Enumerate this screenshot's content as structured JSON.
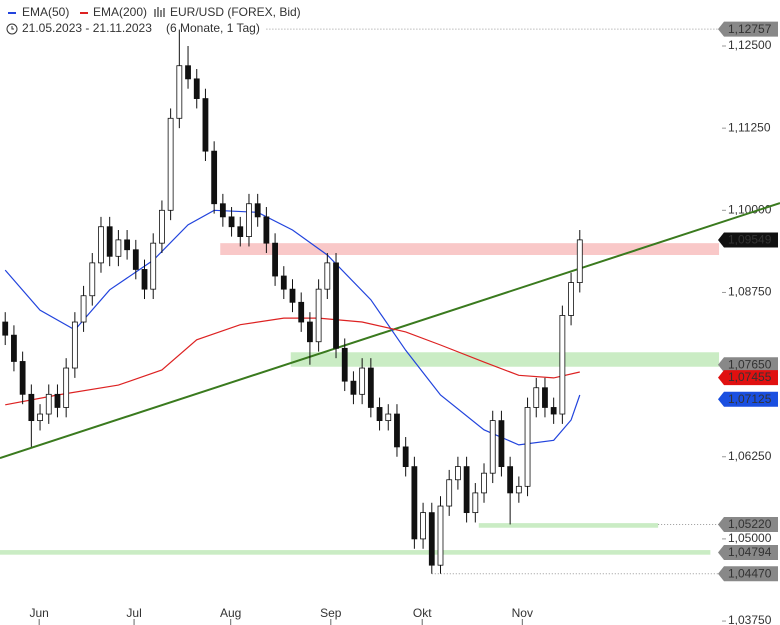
{
  "chart_data": {
    "type": "candlestick",
    "title": "EUR/USD (FOREX, Bid)",
    "date_range": "21.05.2023 - 21.11.2023",
    "period": "(6 Monate, 1 Tag)",
    "xlim": [
      -0.6,
      89
    ],
    "ylim": [
      1.0369,
      1.132
    ],
    "xticks": [
      {
        "value": 3.9,
        "label": "Jun"
      },
      {
        "value": 14.8,
        "label": "Jul"
      },
      {
        "value": 25.9,
        "label": "Aug"
      },
      {
        "value": 37.4,
        "label": "Sep"
      },
      {
        "value": 47.9,
        "label": "Okt"
      },
      {
        "value": 59.4,
        "label": "Nov"
      }
    ],
    "yticks": [
      {
        "value": 1.125,
        "label": "1,12500"
      },
      {
        "value": 1.1125,
        "label": "1,11250"
      },
      {
        "value": 1.1,
        "label": "1,10000"
      },
      {
        "value": 1.0875,
        "label": "1,08750"
      },
      {
        "value": 1.0625,
        "label": "1,06250"
      },
      {
        "value": 1.05,
        "label": "1,05000"
      },
      {
        "value": 1.0375,
        "label": "1,03750"
      }
    ],
    "open": [
      1.083,
      1.081,
      1.077,
      1.072,
      1.068,
      1.069,
      1.072,
      1.07,
      1.076,
      1.083,
      1.087,
      1.092,
      1.0975,
      1.093,
      1.0955,
      1.094,
      1.091,
      1.088,
      1.095,
      1.1,
      1.114,
      1.122,
      1.12,
      1.117,
      1.109,
      1.101,
      1.099,
      1.0975,
      1.096,
      1.101,
      1.099,
      1.095,
      1.09,
      1.088,
      1.086,
      1.083,
      1.08,
      1.088,
      1.092,
      1.079,
      1.074,
      1.072,
      1.076,
      1.07,
      1.068,
      1.069,
      1.064,
      1.061,
      1.05,
      1.054,
      1.046,
      1.055,
      1.059,
      1.061,
      1.054,
      1.057,
      1.06,
      1.068,
      1.061,
      1.057,
      1.058,
      1.07,
      1.073,
      1.07,
      1.069,
      1.084,
      1.089
    ],
    "high": [
      1.0845,
      1.0825,
      1.0785,
      1.0735,
      1.0705,
      1.0735,
      1.0735,
      1.0775,
      1.0845,
      1.0885,
      1.0935,
      1.099,
      1.099,
      1.097,
      1.097,
      1.0955,
      1.0925,
      1.0965,
      1.1015,
      1.1155,
      1.1275,
      1.125,
      1.1215,
      1.1185,
      1.1105,
      1.1025,
      1.1005,
      1.099,
      1.1025,
      1.1025,
      1.1005,
      1.0965,
      1.0915,
      1.0895,
      1.0875,
      1.0845,
      1.0895,
      1.0935,
      1.0935,
      1.0805,
      1.0755,
      1.0775,
      1.0775,
      1.0715,
      1.0705,
      1.0705,
      1.0655,
      1.0625,
      1.0555,
      1.0555,
      1.0565,
      1.0605,
      1.0625,
      1.0625,
      1.0585,
      1.0615,
      1.0695,
      1.0695,
      1.0625,
      1.0595,
      1.0715,
      1.0745,
      1.0745,
      1.0715,
      1.0855,
      1.0905,
      1.097
    ],
    "low": [
      1.0795,
      1.0755,
      1.0705,
      1.064,
      1.0665,
      1.0675,
      1.0685,
      1.0685,
      1.0745,
      1.0815,
      1.0855,
      1.0905,
      1.0915,
      1.0915,
      1.0925,
      1.0895,
      1.0865,
      1.0865,
      1.0935,
      1.0985,
      1.1125,
      1.1185,
      1.1155,
      1.1075,
      1.0995,
      1.0975,
      1.096,
      1.0945,
      1.0945,
      1.0975,
      1.0935,
      1.0885,
      1.0865,
      1.0845,
      1.0815,
      1.0765,
      1.0785,
      1.0865,
      1.0775,
      1.0725,
      1.0705,
      1.0705,
      1.0685,
      1.0665,
      1.0665,
      1.0625,
      1.0595,
      1.0485,
      1.0485,
      1.0447,
      1.0447,
      1.0535,
      1.0575,
      1.0525,
      1.0525,
      1.0555,
      1.0585,
      1.0595,
      1.0522,
      1.0555,
      1.0565,
      1.0685,
      1.0685,
      1.0675,
      1.0675,
      1.0825,
      1.0875
    ],
    "close": [
      1.081,
      1.077,
      1.072,
      1.068,
      1.069,
      1.072,
      1.07,
      1.076,
      1.083,
      1.087,
      1.092,
      1.0975,
      1.093,
      1.0955,
      1.094,
      1.091,
      1.088,
      1.095,
      1.1,
      1.114,
      1.122,
      1.12,
      1.117,
      1.109,
      1.101,
      1.099,
      1.0975,
      1.096,
      1.101,
      1.099,
      1.095,
      1.09,
      1.088,
      1.086,
      1.083,
      1.08,
      1.088,
      1.092,
      1.079,
      1.074,
      1.072,
      1.076,
      1.07,
      1.068,
      1.069,
      1.064,
      1.061,
      1.05,
      1.054,
      1.046,
      1.055,
      1.059,
      1.061,
      1.054,
      1.057,
      1.06,
      1.068,
      1.061,
      1.057,
      1.058,
      1.07,
      1.073,
      1.07,
      1.069,
      1.084,
      1.089,
      1.0955
    ],
    "series": [
      {
        "name": "EMA(50)",
        "color": "#2244dd",
        "x": [
          0,
          4,
          8,
          12,
          17,
          21,
          24,
          29,
          33,
          37,
          42,
          46,
          50,
          55,
          59,
          63,
          65,
          66
        ],
        "values": [
          1.0909,
          1.0848,
          1.0818,
          1.0879,
          1.0924,
          1.0978,
          1.1,
          1.0997,
          1.097,
          1.0932,
          1.0864,
          1.0787,
          1.0719,
          1.0666,
          1.0643,
          1.065,
          1.0681,
          1.0719
        ]
      },
      {
        "name": "EMA(200)",
        "color": "#dd2222",
        "x": [
          0,
          6,
          13,
          18,
          22,
          27,
          32,
          36,
          41,
          46,
          50,
          55,
          59,
          63,
          66
        ],
        "values": [
          1.0704,
          1.0719,
          1.0734,
          1.0757,
          1.0803,
          1.0826,
          1.0836,
          1.0836,
          1.083,
          1.0815,
          1.0795,
          1.0769,
          1.0749,
          1.0745,
          1.0754
        ]
      }
    ],
    "trendline": {
      "color": "#3a7a1e",
      "x": [
        -0.6,
        89
      ],
      "values": [
        1.0623,
        1.1011
      ]
    },
    "zones": [
      {
        "color": "#f7b5b5",
        "from_x": 24.7,
        "to_x": 82,
        "low": 1.0932,
        "high": 1.095
      },
      {
        "color": "#b8e6b0",
        "from_x": 32.8,
        "to_x": 82,
        "low": 1.0762,
        "high": 1.0784
      },
      {
        "color": "#b8e6b0",
        "from_x": 54.4,
        "to_x": 75,
        "low": 1.0517,
        "high": 1.0524
      },
      {
        "color": "#b8e6b0",
        "from_x": -0.6,
        "to_x": 81,
        "low": 1.0476,
        "high": 1.0483
      }
    ],
    "price_labels": [
      {
        "value": 1.12757,
        "label": "1,12757",
        "color": "#888888",
        "line_from": 30
      },
      {
        "value": 1.09549,
        "label": "1,09549",
        "color": "#111111"
      },
      {
        "value": 1.0765,
        "label": "1,07650",
        "color": "#888888"
      },
      {
        "value": 1.07455,
        "label": "1,07455",
        "color": "#e01010"
      },
      {
        "value": 1.07125,
        "label": "1,07125",
        "color": "#1a4fe0"
      },
      {
        "value": 1.0522,
        "label": "1,05220",
        "color": "#888888",
        "line_from": 75
      },
      {
        "value": 1.04794,
        "label": "1,04794",
        "color": "#888888"
      },
      {
        "value": 1.0447,
        "label": "1,04470",
        "color": "#888888",
        "line_from": 49
      }
    ]
  }
}
